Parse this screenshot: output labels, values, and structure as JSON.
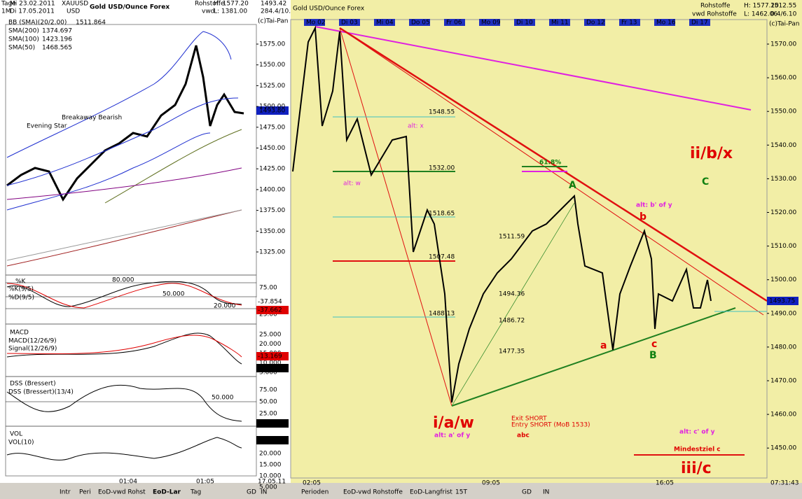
{
  "left": {
    "header": {
      "period": "Tage",
      "range": "1M",
      "from": "Mi 23.02.2011",
      "to": "Di 17.05.2011",
      "symbol": "XAUUSD",
      "currency": "USD",
      "name": "Gold USD/Ounce Forex",
      "market": "Rohstoffe",
      "source": "vwd",
      "high": "H: 1577.20",
      "low": "L: 1381.00",
      "last": "1493.42",
      "change": "284.4/10.",
      "copyright": "(c)Tai-Pan"
    },
    "legend": [
      {
        "name": "BB (SMA)(20/2.00)",
        "value": "1511.864"
      },
      {
        "name": "SMA(200)",
        "value": "1374.697"
      },
      {
        "name": "SMA(100)",
        "value": "1423.196"
      },
      {
        "name": "SMA(50)",
        "value": "1468.565"
      }
    ],
    "annotations": [
      "Breakaway Bearish",
      "Evening Star"
    ],
    "yticks": [
      "1575.00",
      "1550.00",
      "1525.00",
      "1500.00",
      "1475.00",
      "1450.00",
      "1425.00",
      "1400.00",
      "1375.00",
      "1350.00",
      "1325.00"
    ],
    "price_tag": "1493.80",
    "stoch": {
      "title": "%K",
      "k": "%K(9/5)",
      "d": "%D(9/5)",
      "levels": [
        "80.000",
        "50.000",
        "20.000"
      ],
      "yticks": [
        "75.00",
        "50.00",
        "25.00"
      ],
      "tags": [
        "-37.854",
        "-37.662"
      ]
    },
    "macd": {
      "title": "MACD",
      "macd": "MACD(12/26/9)",
      "signal": "Signal(12/26/9)",
      "yticks": [
        "25.000",
        "20.000",
        "15.000",
        "10.000",
        "5.000"
      ],
      "tags": [
        "-13.169",
        "-6.932"
      ]
    },
    "dss": {
      "title": "DSS (Bressert)",
      "line": "DSS (Bressert)(13/4)",
      "level": "50.000",
      "yticks": [
        "75.00",
        "50.00",
        "25.00"
      ],
      "tag": "-1.233"
    },
    "vol": {
      "title": "VOL",
      "line": "VOL(10)",
      "yticks": [
        "20.000",
        "15.000",
        "10.000",
        "5.000"
      ],
      "tag": "-20.514"
    },
    "xlabels": [
      "01:04",
      "01:05",
      "17.05.11"
    ],
    "tabs": [
      "Intr",
      "Peri",
      "EoD-vwd Rohst",
      "EoD-Lar",
      "Tag",
      "GD",
      "IN"
    ]
  },
  "right": {
    "header": {
      "name": "Gold USD/Ounce Forex",
      "market": "Rohstoffe",
      "source": "vwd Rohstoffe",
      "high": "H: 1577.20",
      "low": "L: 1462.06",
      "last": "1512.55",
      "change": "0.4/6.10",
      "copyright": "(c)Tai-Pan"
    },
    "dates": [
      "Mo 02",
      "Di 03",
      "Mi 04",
      "Do 05",
      "Fr 06",
      "Mo 09",
      "Di 10",
      "Mi 11",
      "Do 12",
      "Fr 13",
      "Mo 16",
      "Di 17"
    ],
    "yticks": [
      "1570.00",
      "1560.00",
      "1550.00",
      "1540.00",
      "1530.00",
      "1520.00",
      "1510.00",
      "1500.00",
      "1490.00",
      "1480.00",
      "1470.00",
      "1460.00",
      "1450.00"
    ],
    "price_tag": "1493.75",
    "levels": [
      "1548.55",
      "1532.00",
      "1518.65",
      "1511.59",
      "1507.48",
      "1494.36",
      "1488.13",
      "1486.72",
      "1477.35"
    ],
    "annotations": {
      "alt_x": "alt: x",
      "alt_w": "alt: w",
      "fib": "61.8%",
      "A": "A",
      "iibx": "ii/b/x",
      "C": "C",
      "alt_b": "alt: b' of y",
      "b": "b",
      "a": "a",
      "c": "c",
      "B": "B",
      "iaw": "i/a/w",
      "alt_a": "alt: a' of y",
      "exit": "Exit SHORT",
      "entry": "Entry SHORT (MoB 1533)",
      "abc": "abc",
      "alt_c": "alt: c' of y",
      "target": "Mindestziel c",
      "iiic": "iii/c"
    },
    "xlabels": [
      "02:05",
      "09:05",
      "16:05"
    ],
    "clock": "07:31:43",
    "tabs": [
      "Perioden",
      "EoD-vwd Rohstoffe",
      "EoD-Langfrist",
      "15T",
      "GD",
      "IN"
    ]
  }
}
